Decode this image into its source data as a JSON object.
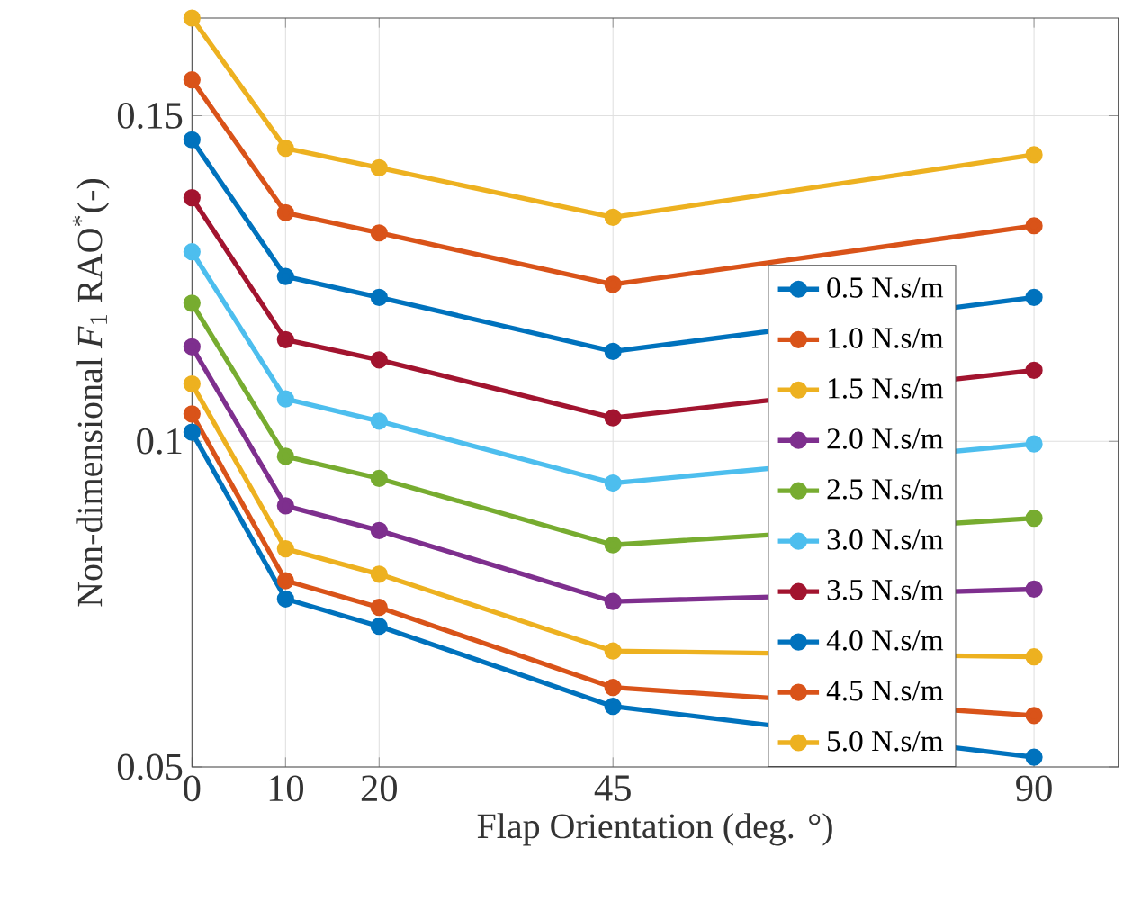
{
  "chart_data": {
    "type": "line",
    "xlabel": "Flap Orientation (deg. °)",
    "ylabel": "Non-dimensional *F*$_{1}$ RAO$^{*}$(-)",
    "x": [
      0,
      10,
      20,
      45,
      90
    ],
    "xlim": [
      0,
      99
    ],
    "xticks": [
      0,
      10,
      20,
      45,
      90
    ],
    "ylim": [
      0.05,
      0.165
    ],
    "yticks": [
      0.05,
      0.1,
      0.15
    ],
    "grid": true,
    "legend": "bottom right",
    "marker": "circle",
    "line_style": "solid",
    "series": [
      {
        "name": "0.5 N.s/m",
        "color": "#0072bd",
        "values": [
          0.1014,
          0.0758,
          0.0716,
          0.0593,
          0.0515
        ]
      },
      {
        "name": "1.0 N.s/m",
        "color": "#d95319",
        "values": [
          0.1042,
          0.0786,
          0.0745,
          0.0622,
          0.0579
        ]
      },
      {
        "name": "1.5 N.s/m",
        "color": "#edb120",
        "values": [
          0.1088,
          0.0835,
          0.0796,
          0.0678,
          0.0669
        ]
      },
      {
        "name": "2.0 N.s/m",
        "color": "#7e2f8e",
        "values": [
          0.1145,
          0.0901,
          0.0863,
          0.0754,
          0.0773
        ]
      },
      {
        "name": "2.5 N.s/m",
        "color": "#77ac30",
        "values": [
          0.1212,
          0.0977,
          0.0943,
          0.0841,
          0.0882
        ]
      },
      {
        "name": "3.0 N.s/m",
        "color": "#4dbeee",
        "values": [
          0.1291,
          0.1065,
          0.1031,
          0.0936,
          0.0996
        ]
      },
      {
        "name": "3.5 N.s/m",
        "color": "#a2142f",
        "values": [
          0.1374,
          0.1156,
          0.1125,
          0.1036,
          0.1109
        ]
      },
      {
        "name": "4.0 N.s/m",
        "color": "#0072bd",
        "values": [
          0.1463,
          0.1253,
          0.1221,
          0.1138,
          0.1221
        ]
      },
      {
        "name": "4.5 N.s/m",
        "color": "#d95319",
        "values": [
          0.1555,
          0.1351,
          0.132,
          0.1241,
          0.1331
        ]
      },
      {
        "name": "5.0 N.s/m",
        "color": "#edb120",
        "values": [
          0.165,
          0.145,
          0.142,
          0.1344,
          0.144
        ]
      }
    ]
  }
}
